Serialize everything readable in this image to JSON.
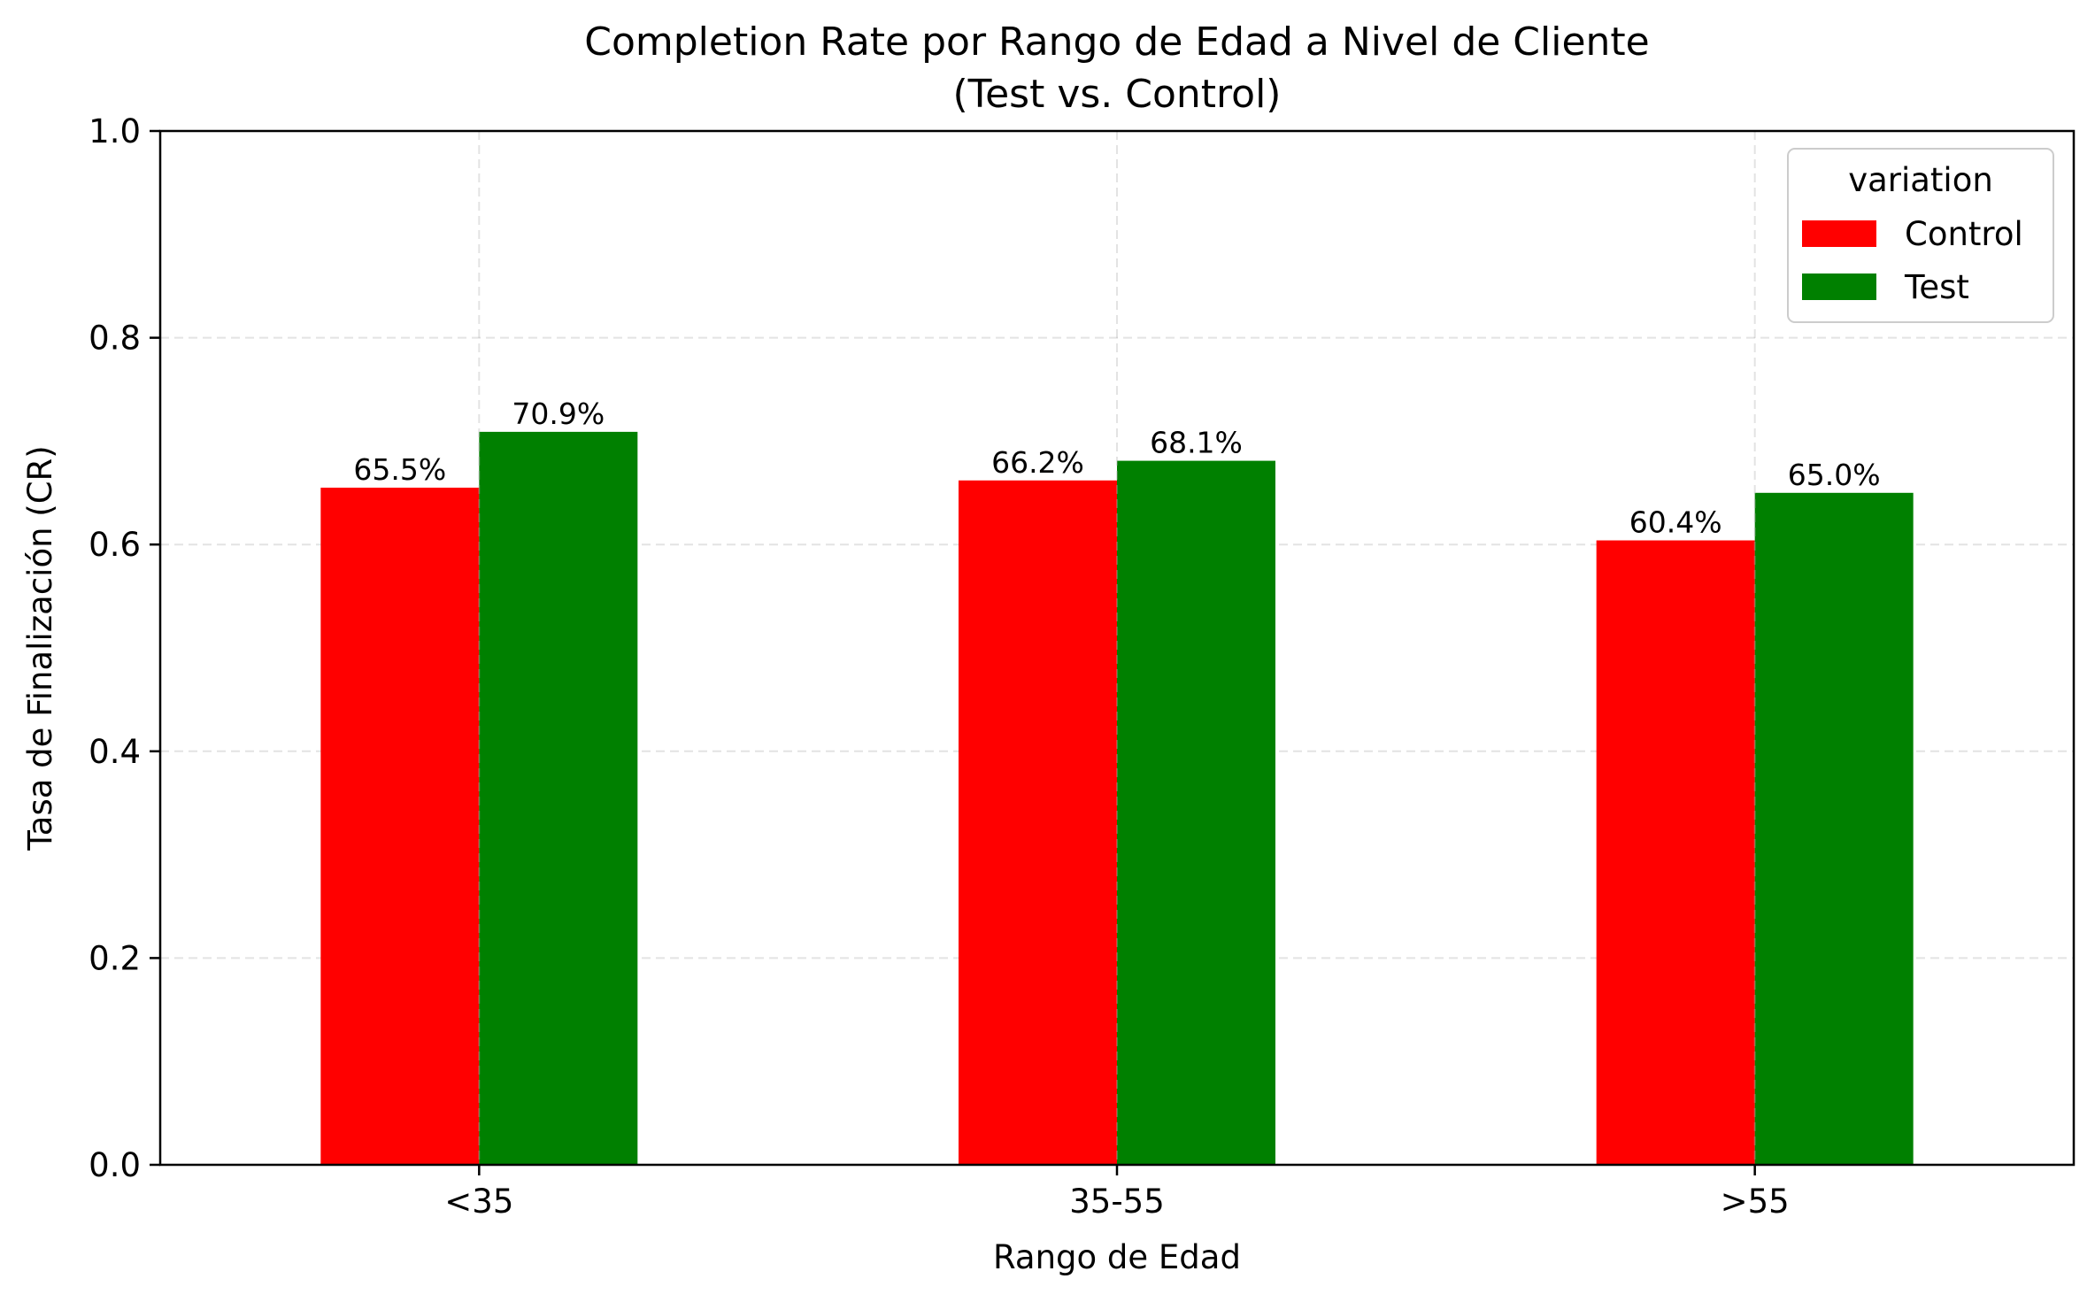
{
  "chart_data": {
    "type": "bar",
    "title_line1": "Completion Rate por Rango de Edad a Nivel de Cliente",
    "title_line2": "(Test vs. Control)",
    "xlabel": "Rango de Edad",
    "ylabel": "Tasa de Finalización (CR)",
    "categories": [
      "<35",
      "35-55",
      ">55"
    ],
    "series": [
      {
        "name": "Control",
        "color": "#ff0000",
        "values": [
          0.655,
          0.662,
          0.604
        ],
        "labels": [
          "65.5%",
          "66.2%",
          "60.4%"
        ]
      },
      {
        "name": "Test",
        "color": "#008000",
        "values": [
          0.709,
          0.681,
          0.65
        ],
        "labels": [
          "70.9%",
          "68.1%",
          "65.0%"
        ]
      }
    ],
    "ylim": [
      0,
      1.0
    ],
    "yticks": [
      "0.0",
      "0.2",
      "0.4",
      "0.6",
      "0.8",
      "1.0"
    ],
    "ytick_values": [
      0,
      0.2,
      0.4,
      0.6,
      0.8,
      1.0
    ],
    "grid": true,
    "legend": {
      "title": "variation",
      "placement": "top-right"
    }
  }
}
